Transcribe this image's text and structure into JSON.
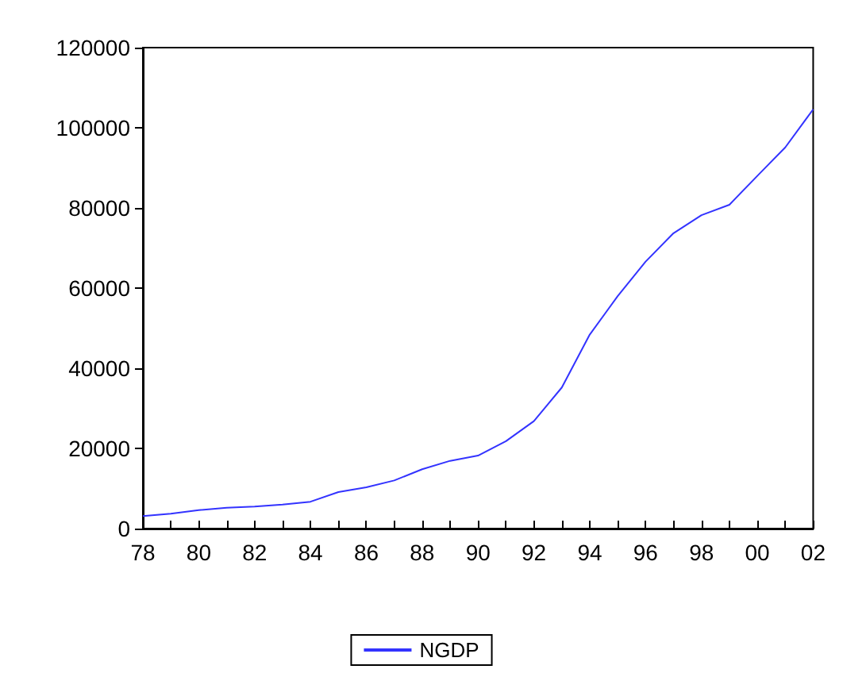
{
  "chart_data": {
    "type": "line",
    "categories": [
      "78",
      null,
      "80",
      null,
      "82",
      null,
      "84",
      null,
      "86",
      null,
      "88",
      null,
      "90",
      null,
      "92",
      null,
      "94",
      null,
      "96",
      null,
      "98",
      null,
      "00",
      null,
      "02"
    ],
    "series": [
      {
        "name": "NGDP",
        "color": "#3333ff",
        "values": [
          3100,
          3700,
          4600,
          5200,
          5500,
          6000,
          6700,
          9100,
          10300,
          12000,
          14800,
          16900,
          18200,
          21800,
          26800,
          35200,
          48400,
          58000,
          66600,
          73700,
          78200,
          80800,
          88000,
          95100,
          104600
        ]
      }
    ],
    "ylim": [
      0,
      120000
    ],
    "yticks": [
      0,
      20000,
      40000,
      60000,
      80000,
      100000,
      120000
    ],
    "grid": false,
    "legend": "bottom",
    "marker": "none",
    "line_style": "solid"
  }
}
